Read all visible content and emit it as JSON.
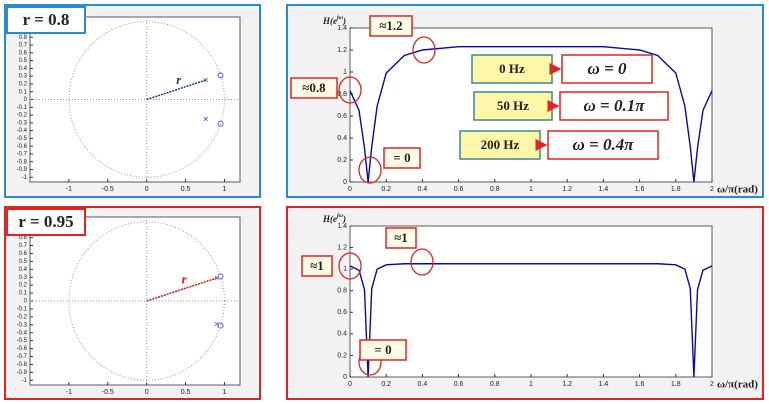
{
  "chart_data": [
    {
      "type": "scatter",
      "title": "r = 0.8",
      "frame_color": "#2a8ad8",
      "xlim": [
        -1.5,
        1.2
      ],
      "ylim": [
        -1.06,
        1.06
      ],
      "xticks": [
        -1,
        -0.5,
        0,
        0.5,
        1
      ],
      "yticks": [
        -1,
        -0.9,
        -0.8,
        -0.7,
        -0.6,
        -0.5,
        -0.4,
        -0.3,
        -0.2,
        -0.1,
        0,
        0.1,
        0.2,
        0.3,
        0.4,
        0.5,
        0.6,
        0.7,
        0.8,
        0.9,
        1
      ],
      "series": [
        {
          "marker": "o",
          "color": "#5b5bd6",
          "x": [
            0.95,
            0.95
          ],
          "y": [
            0.31,
            -0.31
          ]
        },
        {
          "marker": "x",
          "color": "#5b5bd6",
          "x": [
            0.76,
            0.76
          ],
          "y": [
            0.25,
            -0.25
          ]
        }
      ],
      "radius_label": "r",
      "radius_color": "#1a3a8a"
    },
    {
      "type": "line",
      "frame_color": "#2a8ad8",
      "ylabel": {
        "base": "H(e",
        "sup": "jω",
        "end": ")"
      },
      "xlabel": "ω/π(rad)",
      "xlim": [
        0,
        2
      ],
      "ylim": [
        0,
        1.4
      ],
      "xticks": [
        0,
        0.2,
        0.4,
        0.6,
        0.8,
        1,
        1.2,
        1.4,
        1.6,
        1.8,
        2
      ],
      "yticks": [
        0,
        0.2,
        0.4,
        0.6,
        0.8,
        1,
        1.2,
        1.4
      ],
      "x": [
        0,
        0.05,
        0.08,
        0.1,
        0.12,
        0.15,
        0.2,
        0.3,
        0.4,
        0.6,
        0.8,
        1,
        1.2,
        1.4,
        1.6,
        1.7,
        1.8,
        1.85,
        1.88,
        1.9,
        1.92,
        1.95,
        2
      ],
      "series": [
        {
          "color": "#0a0aa0",
          "values": [
            0.83,
            0.65,
            0.31,
            0,
            0.32,
            0.69,
            0.99,
            1.15,
            1.2,
            1.23,
            1.23,
            1.23,
            1.23,
            1.23,
            1.2,
            1.15,
            0.99,
            0.69,
            0.32,
            0,
            0.31,
            0.65,
            0.83
          ]
        }
      ],
      "annotations": [
        "≈1.2",
        "≈0.8",
        "= 0"
      ],
      "mappings": [
        {
          "from": "0 Hz",
          "to": "ω = 0"
        },
        {
          "from": "50 Hz",
          "to": "ω = 0.1π"
        },
        {
          "from": "200 Hz",
          "to": "ω = 0.4π"
        }
      ]
    },
    {
      "type": "scatter",
      "title": "r = 0.95",
      "frame_color": "#e02424",
      "xlim": [
        -1.5,
        1.2
      ],
      "ylim": [
        -1.06,
        1.06
      ],
      "xticks": [
        -1,
        -0.5,
        0,
        0.5,
        1
      ],
      "yticks": [
        -1,
        -0.9,
        -0.8,
        -0.7,
        -0.6,
        -0.5,
        -0.4,
        -0.3,
        -0.2,
        -0.1,
        0,
        0.1,
        0.2,
        0.3,
        0.4,
        0.5,
        0.6,
        0.7,
        0.8,
        0.9,
        1
      ],
      "series": [
        {
          "marker": "o",
          "color": "#5b5bd6",
          "x": [
            0.95,
            0.95
          ],
          "y": [
            0.31,
            -0.31
          ]
        },
        {
          "marker": "x",
          "color": "#5b5bd6",
          "x": [
            0.9,
            0.9
          ],
          "y": [
            0.29,
            -0.29
          ]
        }
      ],
      "radius_label": "r",
      "radius_color": "#dd1111"
    },
    {
      "type": "line",
      "frame_color": "#e02424",
      "ylabel": {
        "base": "H(e",
        "sup": "jω",
        "end": ")"
      },
      "xlabel": "ω/π(rad)",
      "xlim": [
        0,
        2
      ],
      "ylim": [
        0,
        1.4
      ],
      "xticks": [
        0,
        0.2,
        0.4,
        0.6,
        0.8,
        1,
        1.2,
        1.4,
        1.6,
        1.8,
        2
      ],
      "yticks": [
        0,
        0.2,
        0.4,
        0.6,
        0.8,
        1,
        1.2,
        1.4
      ],
      "x": [
        0,
        0.05,
        0.08,
        0.1,
        0.12,
        0.15,
        0.2,
        0.3,
        0.4,
        0.6,
        0.8,
        1,
        1.2,
        1.4,
        1.6,
        1.7,
        1.8,
        1.85,
        1.88,
        1.9,
        1.92,
        1.95,
        2
      ],
      "series": [
        {
          "color": "#0a0aa0",
          "values": [
            1.03,
            0.99,
            0.81,
            0,
            0.82,
            1.0,
            1.04,
            1.05,
            1.05,
            1.05,
            1.05,
            1.05,
            1.05,
            1.05,
            1.05,
            1.05,
            1.04,
            1.0,
            0.82,
            0,
            0.81,
            0.99,
            1.03
          ]
        }
      ],
      "annotations": [
        "≈1",
        "≈1",
        "= 0"
      ]
    }
  ]
}
